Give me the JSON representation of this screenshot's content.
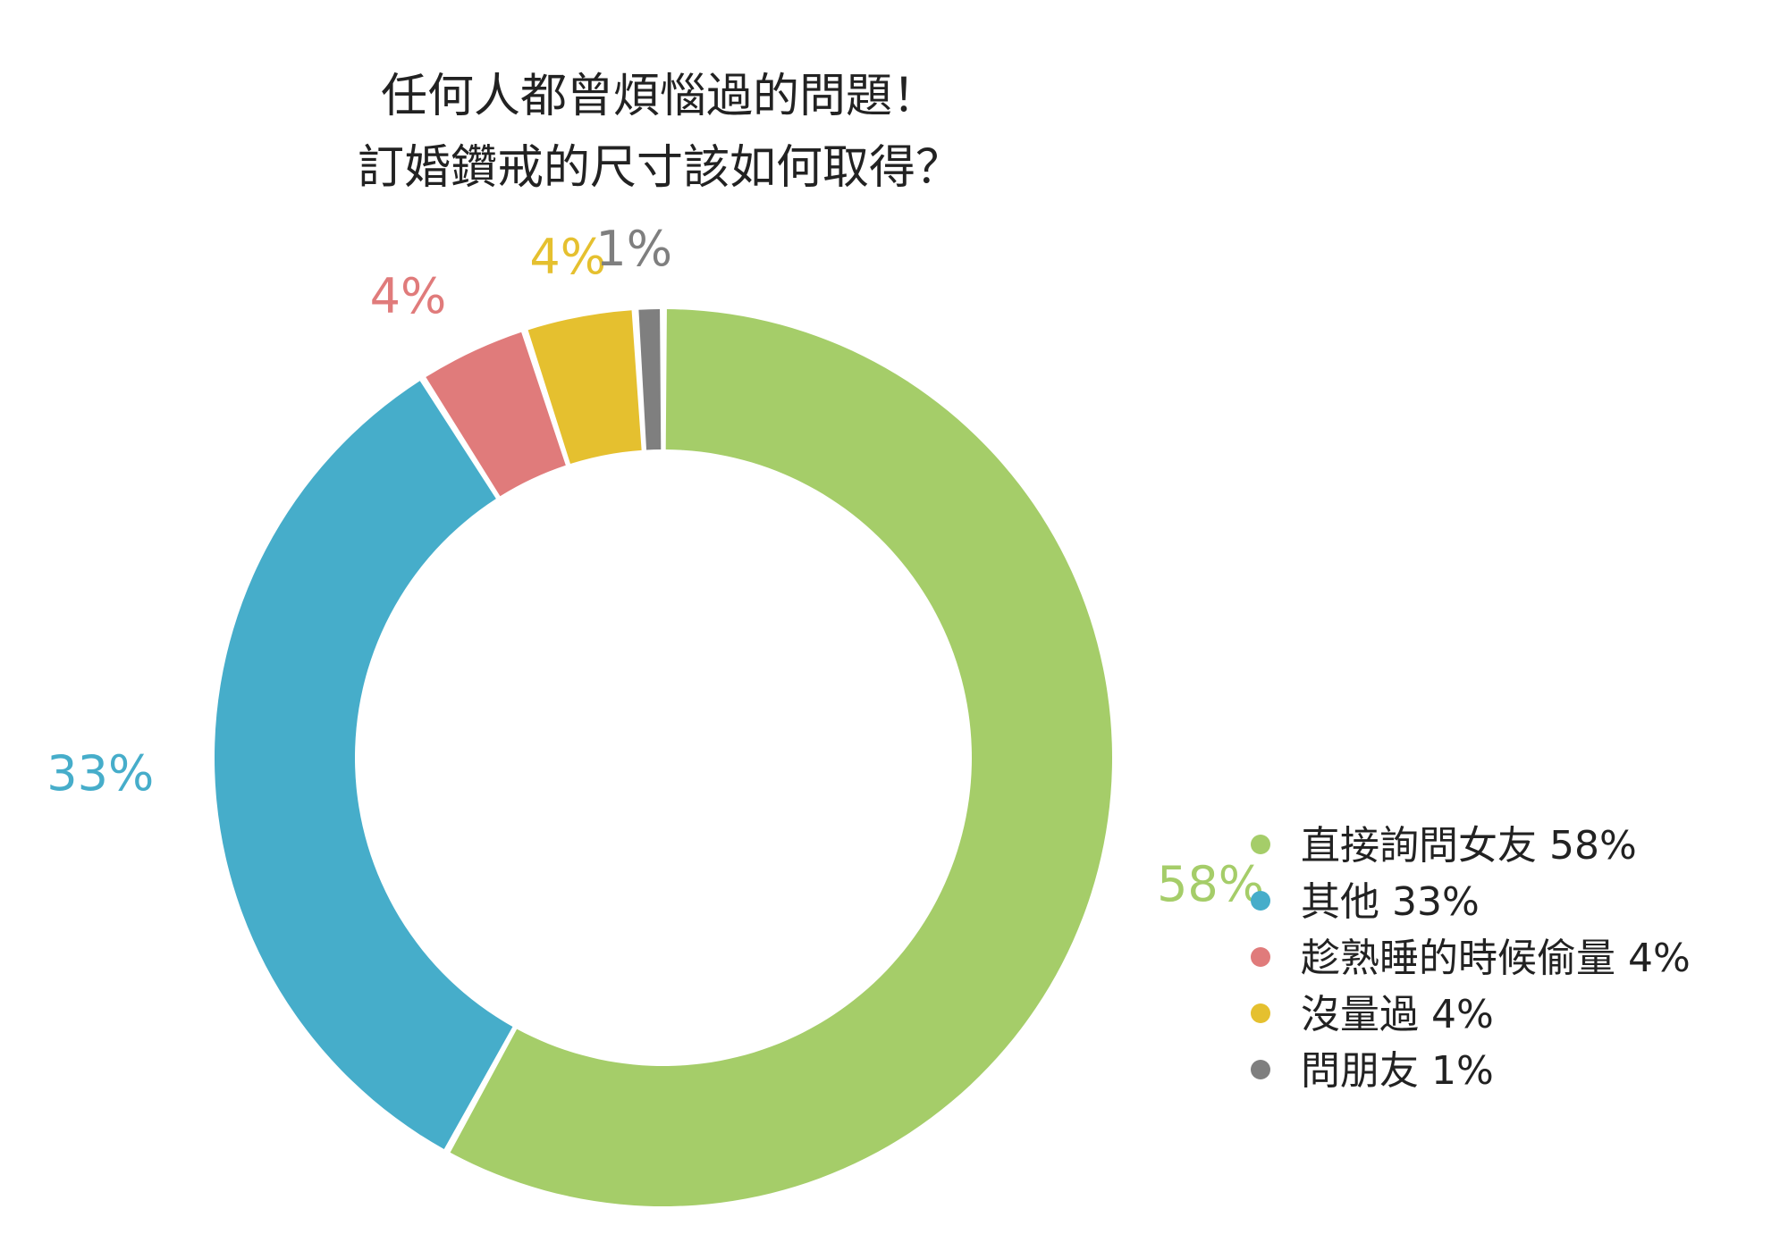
{
  "chart_data": {
    "type": "pie",
    "variant": "donut",
    "title_lines": [
      "任何人都曾煩惱過的問題！",
      "訂婚鑽戒的尺寸該如何取得？"
    ],
    "legend_position": "right",
    "slices": [
      {
        "name": "直接詢問女友",
        "value": 58,
        "value_label": "58%",
        "legend_label": "直接詢問女友 58%",
        "color": "#a5cd69"
      },
      {
        "name": "其他",
        "value": 33,
        "value_label": "33%",
        "legend_label": "其他 33%",
        "color": "#46adca"
      },
      {
        "name": "趁熟睡的時候偷量",
        "value": 4,
        "value_label": "4%",
        "legend_label": "趁熟睡的時候偷量 4%",
        "color": "#e07b7b"
      },
      {
        "name": "沒量過",
        "value": 4,
        "value_label": "4%",
        "legend_label": "沒量過 4%",
        "color": "#e5c02f"
      },
      {
        "name": "問朋友",
        "value": 1,
        "value_label": "1%",
        "legend_label": "問朋友 1%",
        "color": "#7f7f7f"
      }
    ]
  }
}
